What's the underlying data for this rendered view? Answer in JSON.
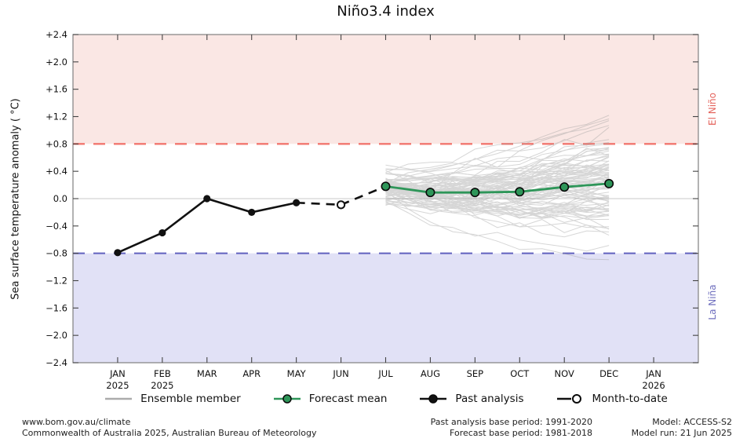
{
  "title": "Niño3.4 index",
  "y_axis": {
    "label": "Sea surface temperature anomaly ( °C)",
    "tick_values": [
      2.4,
      2.0,
      1.6,
      1.2,
      0.8,
      0.4,
      0.0,
      -0.4,
      -0.8,
      -1.2,
      -1.6,
      -2.0,
      -2.4
    ],
    "tick_labels": [
      "+2.4",
      "+2.0",
      "+1.6",
      "+1.2",
      "+0.8",
      "+0.4",
      "0.0",
      "−0.4",
      "−0.8",
      "−1.2",
      "−1.6",
      "−2.0",
      "−2.4"
    ]
  },
  "x_axis": {
    "ticks": [
      {
        "month": "JAN",
        "year": "2025"
      },
      {
        "month": "FEB",
        "year": "2025"
      },
      {
        "month": "MAR",
        "year": ""
      },
      {
        "month": "APR",
        "year": ""
      },
      {
        "month": "MAY",
        "year": ""
      },
      {
        "month": "JUN",
        "year": ""
      },
      {
        "month": "JUL",
        "year": ""
      },
      {
        "month": "AUG",
        "year": ""
      },
      {
        "month": "SEP",
        "year": ""
      },
      {
        "month": "OCT",
        "year": ""
      },
      {
        "month": "NOV",
        "year": ""
      },
      {
        "month": "DEC",
        "year": ""
      },
      {
        "month": "JAN",
        "year": "2026"
      }
    ]
  },
  "bands": {
    "el_nino_label": "El Niño",
    "la_nina_label": "La Niña"
  },
  "colors": {
    "el_nino_band": "#fae7e4",
    "el_nino_line": "#f2776f",
    "el_nino_label": "#e4635c",
    "la_nina_band": "#e1e1f6",
    "la_nina_line": "#6161bf",
    "la_nina_label": "#6f6fbe",
    "forecast": "#2e9659",
    "past": "#111111",
    "month_to_date_fill": "#ffffff",
    "ensemble": "#9e9e9e",
    "zero_line": "#c8c8c8",
    "frame": "#808080"
  },
  "chart_data": {
    "type": "line",
    "title": "Niño3.4 index",
    "xlabel": "",
    "ylabel": "Sea surface temperature anomaly ( °C)",
    "ylim": [
      -2.4,
      2.4
    ],
    "grid": false,
    "legend_position": "bottom",
    "x_categories": [
      "JAN 2025",
      "FEB 2025",
      "MAR",
      "APR",
      "MAY",
      "JUN",
      "JUL",
      "AUG",
      "SEP",
      "OCT",
      "NOV",
      "DEC",
      "JAN 2026"
    ],
    "thresholds": {
      "el_nino": 0.8,
      "la_nina": -0.8,
      "zero": 0.0
    },
    "series": [
      {
        "name": "Past analysis",
        "months": [
          "JAN",
          "FEB",
          "MAR",
          "APR",
          "MAY"
        ],
        "month_index": [
          0,
          1,
          2,
          3,
          4
        ],
        "values": [
          -0.79,
          -0.5,
          0.0,
          -0.2,
          -0.06
        ],
        "style": "solid-black-dots"
      },
      {
        "name": "Month-to-date",
        "months": [
          "JUN"
        ],
        "month_index": [
          5
        ],
        "values": [
          -0.09
        ],
        "style": "open-circle, dashed connector from MAY through JUN to JUL"
      },
      {
        "name": "Forecast mean",
        "months": [
          "JUL",
          "AUG",
          "SEP",
          "OCT",
          "NOV",
          "DEC"
        ],
        "month_index": [
          6,
          7,
          8,
          9,
          10,
          11
        ],
        "values": [
          0.18,
          0.09,
          0.09,
          0.1,
          0.17,
          0.22
        ],
        "style": "solid-green-dots"
      }
    ],
    "ensemble": {
      "name": "Ensemble member",
      "count": 90,
      "months": [
        "JUL",
        "AUG",
        "SEP",
        "OCT",
        "NOV",
        "DEC"
      ],
      "envelope_top": [
        0.5,
        0.85,
        1.0,
        1.1,
        1.25,
        1.3
      ],
      "envelope_bottom": [
        -0.1,
        -0.5,
        -0.78,
        -0.95,
        -1.02,
        -1.06
      ],
      "start_mean": 0.2,
      "start_sd": 0.12,
      "end_sd": 0.42,
      "seed": 20250621
    }
  },
  "legend": {
    "items": [
      {
        "label": "Ensemble member",
        "marker": "line",
        "color": "#ababab",
        "dot_fill": ""
      },
      {
        "label": "Forecast mean",
        "marker": "line-dot",
        "color": "#2e9659",
        "dot_fill": "#2e9659"
      },
      {
        "label": "Past analysis",
        "marker": "line-dot",
        "color": "#111111",
        "dot_fill": "#111111"
      },
      {
        "label": "Month-to-date",
        "marker": "line-open-dot",
        "color": "#111111",
        "dot_fill": "#ffffff"
      }
    ]
  },
  "footer": {
    "left": [
      "www.bom.gov.au/climate",
      "Commonwealth of Australia 2025, Australian Bureau of Meteorology"
    ],
    "center": [
      "Past analysis base period: 1991-2020",
      "Forecast base period: 1981-2018"
    ],
    "right": [
      "Model: ACCESS-S2",
      "Model run: 21 Jun 2025"
    ]
  }
}
